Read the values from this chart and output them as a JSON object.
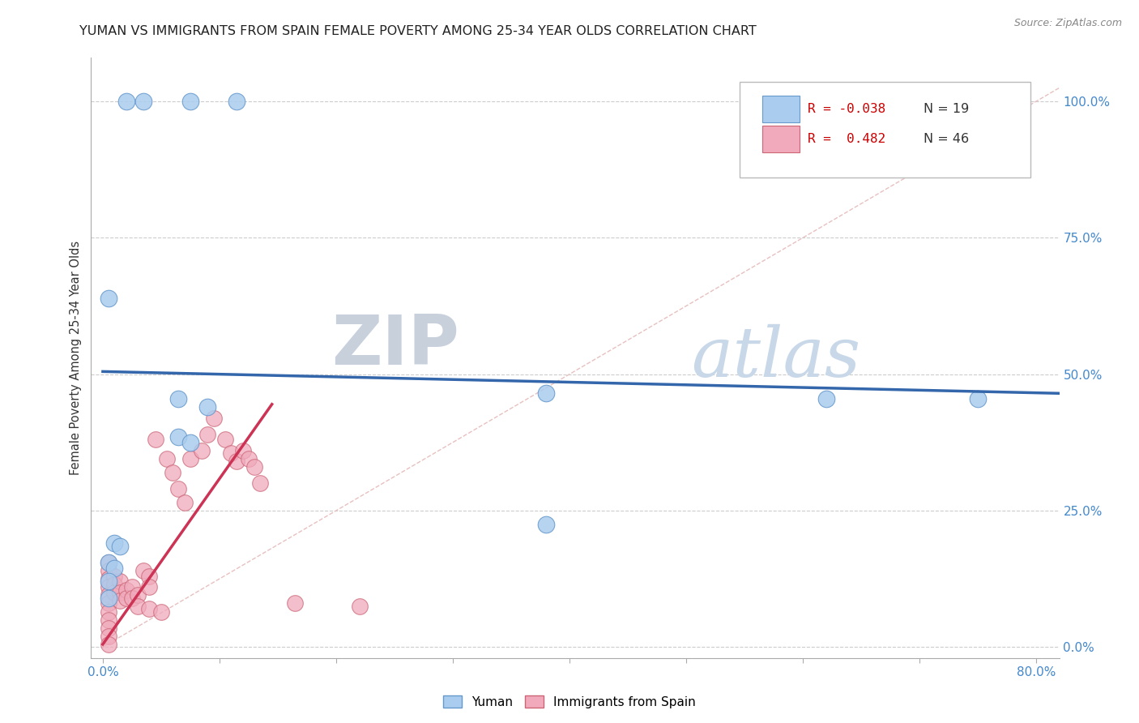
{
  "title": "YUMAN VS IMMIGRANTS FROM SPAIN FEMALE POVERTY AMONG 25-34 YEAR OLDS CORRELATION CHART",
  "source": "Source: ZipAtlas.com",
  "ylabel": "Female Poverty Among 25-34 Year Olds",
  "y_tick_labels": [
    "100.0%",
    "75.0%",
    "50.0%",
    "25.0%",
    "0.0%"
  ],
  "y_tick_values": [
    1.0,
    0.75,
    0.5,
    0.25,
    0.0
  ],
  "x_lim": [
    -0.01,
    0.82
  ],
  "y_lim": [
    -0.02,
    1.08
  ],
  "series_yuman": {
    "color": "#aaccee",
    "edge_color": "#6699cc",
    "points": [
      [
        0.02,
        1.0
      ],
      [
        0.035,
        1.0
      ],
      [
        0.075,
        1.0
      ],
      [
        0.115,
        1.0
      ],
      [
        0.005,
        0.64
      ],
      [
        0.065,
        0.455
      ],
      [
        0.09,
        0.44
      ],
      [
        0.065,
        0.385
      ],
      [
        0.075,
        0.375
      ],
      [
        0.38,
        0.465
      ],
      [
        0.62,
        0.455
      ],
      [
        0.75,
        0.455
      ],
      [
        0.38,
        0.225
      ],
      [
        0.01,
        0.19
      ],
      [
        0.015,
        0.185
      ],
      [
        0.005,
        0.155
      ],
      [
        0.01,
        0.145
      ],
      [
        0.005,
        0.12
      ],
      [
        0.005,
        0.09
      ]
    ],
    "trend_x": [
      0.0,
      0.82
    ],
    "trend_y": [
      0.505,
      0.465
    ],
    "trend_color": "#3366aa",
    "trend_linewidth": 2.5
  },
  "series_spain": {
    "color": "#f0aabb",
    "edge_color": "#cc6677",
    "points": [
      [
        0.005,
        0.155
      ],
      [
        0.005,
        0.14
      ],
      [
        0.005,
        0.125
      ],
      [
        0.005,
        0.11
      ],
      [
        0.005,
        0.095
      ],
      [
        0.005,
        0.08
      ],
      [
        0.005,
        0.065
      ],
      [
        0.005,
        0.05
      ],
      [
        0.005,
        0.035
      ],
      [
        0.005,
        0.02
      ],
      [
        0.005,
        0.005
      ],
      [
        0.01,
        0.13
      ],
      [
        0.01,
        0.115
      ],
      [
        0.01,
        0.1
      ],
      [
        0.015,
        0.12
      ],
      [
        0.015,
        0.1
      ],
      [
        0.015,
        0.085
      ],
      [
        0.02,
        0.105
      ],
      [
        0.02,
        0.09
      ],
      [
        0.025,
        0.11
      ],
      [
        0.025,
        0.09
      ],
      [
        0.03,
        0.095
      ],
      [
        0.03,
        0.075
      ],
      [
        0.035,
        0.14
      ],
      [
        0.04,
        0.13
      ],
      [
        0.04,
        0.11
      ],
      [
        0.045,
        0.38
      ],
      [
        0.055,
        0.345
      ],
      [
        0.06,
        0.32
      ],
      [
        0.065,
        0.29
      ],
      [
        0.07,
        0.265
      ],
      [
        0.075,
        0.345
      ],
      [
        0.085,
        0.36
      ],
      [
        0.09,
        0.39
      ],
      [
        0.095,
        0.42
      ],
      [
        0.105,
        0.38
      ],
      [
        0.11,
        0.355
      ],
      [
        0.115,
        0.34
      ],
      [
        0.12,
        0.36
      ],
      [
        0.125,
        0.345
      ],
      [
        0.13,
        0.33
      ],
      [
        0.135,
        0.3
      ],
      [
        0.04,
        0.07
      ],
      [
        0.05,
        0.065
      ],
      [
        0.165,
        0.08
      ],
      [
        0.22,
        0.075
      ]
    ],
    "trend_x": [
      0.0,
      0.145
    ],
    "trend_y": [
      0.005,
      0.445
    ],
    "trend_color": "#cc3355",
    "trend_linewidth": 2.5
  },
  "diagonal_line": {
    "x": [
      0.0,
      0.82
    ],
    "y": [
      0.0,
      1.025
    ],
    "color": "#e8c0c0",
    "linestyle": "--",
    "linewidth": 1.0
  },
  "watermark_zip": "ZIP",
  "watermark_atlas": "atlas",
  "watermark_color": "#d8dde8",
  "background_color": "#ffffff",
  "grid_color": "#cccccc",
  "title_color": "#222222",
  "title_fontsize": 11.5,
  "source_color": "#888888",
  "axis_label_color": "#333333",
  "tick_label_color": "#4488cc",
  "legend_R1": "R = -0.038",
  "legend_N1": "N = 19",
  "legend_R2": "R =  0.482",
  "legend_N2": "N = 46",
  "legend_color1": "#aaccee",
  "legend_color2": "#f0aabb",
  "legend_edge1": "#6699cc",
  "legend_edge2": "#cc6677"
}
